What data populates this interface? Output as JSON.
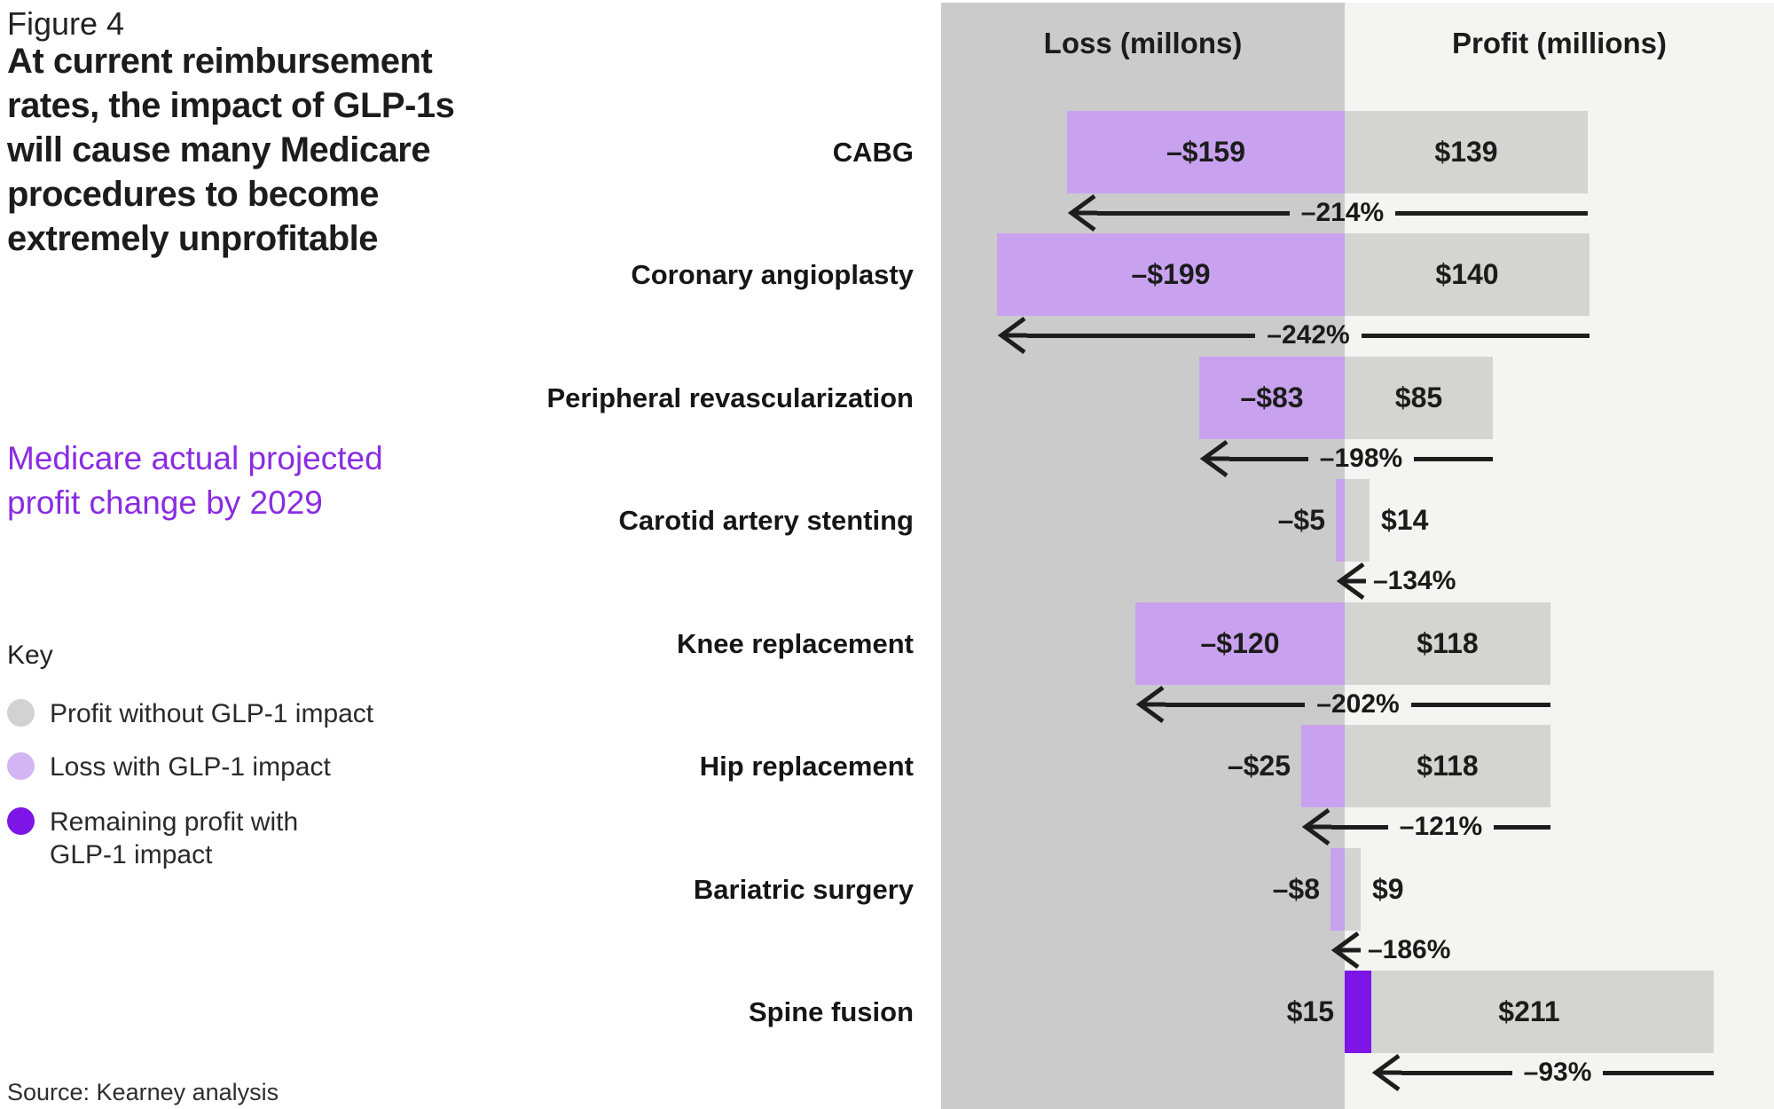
{
  "figure_label": "Figure 4",
  "title": "At current reimbursement\nrates, the impact of GLP-1s\nwill cause many Medicare\nprocedures to become\nextremely unprofitable",
  "subtitle": "Medicare actual projected\nprofit change by 2029",
  "key": {
    "heading": "Key",
    "items": [
      {
        "label": "Profit without GLP-1 impact",
        "color": "#d2d2d2"
      },
      {
        "label": "Loss with GLP-1 impact",
        "color": "#d4b5f4"
      },
      {
        "label": "Remaining profit with\nGLP-1 impact",
        "color": "#7c15e6"
      }
    ]
  },
  "source": "Source: Kearney analysis",
  "chart": {
    "loss_header": "Loss (millons)",
    "profit_header": "Profit (millions)",
    "rows": [
      {
        "label": "CABG",
        "loss": 159,
        "loss_label": "–$159",
        "profit": 139,
        "profit_label": "$139",
        "pct_label": "–214%"
      },
      {
        "label": "Coronary angioplasty",
        "loss": 199,
        "loss_label": "–$199",
        "profit": 140,
        "profit_label": "$140",
        "pct_label": "–242%"
      },
      {
        "label": "Peripheral revascularization",
        "loss": 83,
        "loss_label": "–$83",
        "profit": 85,
        "profit_label": "$85",
        "pct_label": "–198%"
      },
      {
        "label": "Carotid artery stenting",
        "loss": 5,
        "loss_label": "–$5",
        "profit": 14,
        "profit_label": "$14",
        "pct_label": "–134%"
      },
      {
        "label": "Knee replacement",
        "loss": 120,
        "loss_label": "–$120",
        "profit": 118,
        "profit_label": "$118",
        "pct_label": "–202%"
      },
      {
        "label": "Hip replacement",
        "loss": 25,
        "loss_label": "–$25",
        "profit": 118,
        "profit_label": "$118",
        "pct_label": "–121%"
      },
      {
        "label": "Bariatric surgery",
        "loss": 8,
        "loss_label": "–$8",
        "profit": 9,
        "profit_label": "$9",
        "pct_label": "–186%"
      },
      {
        "label": "Spine fusion",
        "remaining": 15,
        "remaining_label": "$15",
        "profit": 211,
        "profit_label": "$211",
        "pct_label": "–93%"
      }
    ]
  },
  "colors": {
    "loss_bg": "#cbcbcb",
    "profit_bg": "#f4f4f3",
    "profit_bar": "#d4d4d2",
    "loss_bar": "#c9a2ef",
    "remaining_bar": "#7c15e6",
    "accent_purple": "#8a2be2",
    "arrow": "#1d1d1d"
  },
  "chart_data": {
    "type": "bar",
    "orientation": "horizontal-diverging",
    "title": "At current reimbursement rates, the impact of GLP-1s will cause many Medicare procedures to become extremely unprofitable",
    "subtitle": "Medicare actual projected profit change by 2029",
    "source": "Source: Kearney analysis",
    "x_axis_headers": [
      "Loss (millons)",
      "Profit (millions)"
    ],
    "units": "millions of dollars",
    "categories": [
      "CABG",
      "Coronary angioplasty",
      "Peripheral revascularization",
      "Carotid artery stenting",
      "Knee replacement",
      "Hip replacement",
      "Bariatric surgery",
      "Spine fusion"
    ],
    "series": [
      {
        "name": "Profit without GLP-1 impact",
        "values": [
          139,
          140,
          85,
          14,
          118,
          118,
          9,
          211
        ]
      },
      {
        "name": "Loss with GLP-1 impact",
        "values": [
          -159,
          -199,
          -83,
          -5,
          -120,
          -25,
          -8,
          null
        ]
      },
      {
        "name": "Remaining profit with GLP-1 impact",
        "values": [
          null,
          null,
          null,
          null,
          null,
          null,
          null,
          15
        ]
      },
      {
        "name": "Medicare actual projected profit change by 2029 (%)",
        "values": [
          -214,
          -242,
          -198,
          -134,
          -202,
          -121,
          -186,
          -93
        ]
      }
    ],
    "legend_position": "left",
    "grid": false
  }
}
